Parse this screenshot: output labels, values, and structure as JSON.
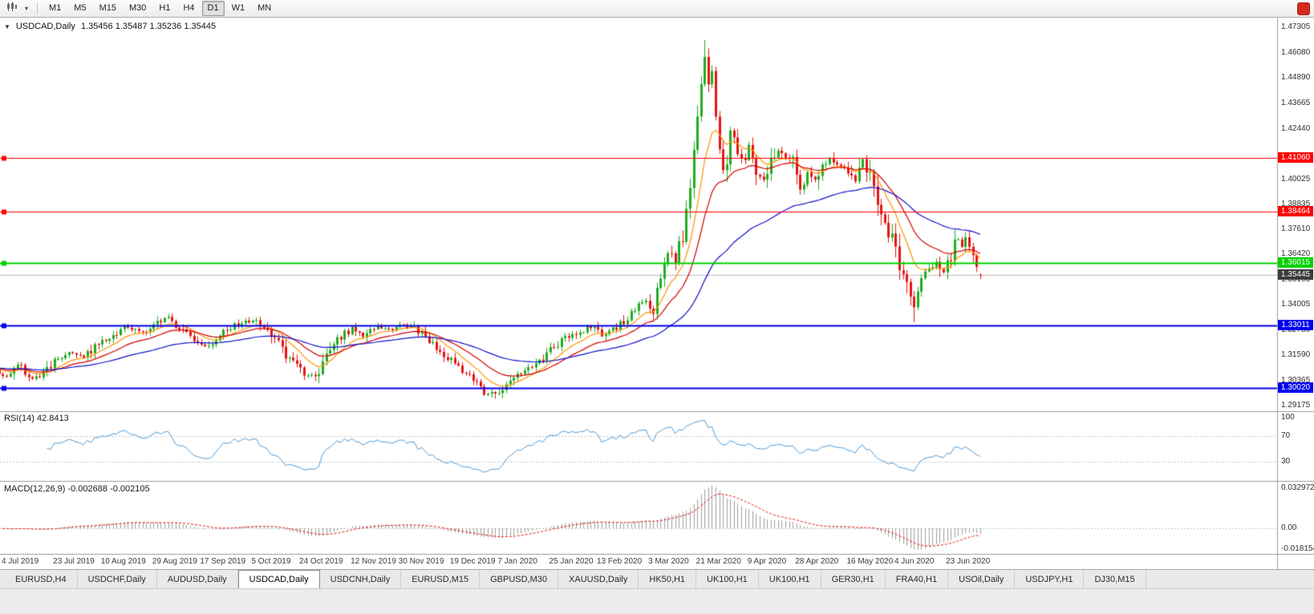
{
  "toolbar": {
    "dropdown_caret": "▾",
    "timeframes": [
      "M1",
      "M5",
      "M15",
      "M30",
      "H1",
      "H4",
      "D1",
      "W1",
      "MN"
    ],
    "active_timeframe": "D1",
    "logo_glyph": ""
  },
  "chart": {
    "collapse_marker": "▼",
    "symbol_label": "USDCAD,Daily",
    "ohlc_text": "1.35456 1.35487 1.35236 1.35445",
    "price_ticks": [
      "1.47305",
      "1.46080",
      "1.44890",
      "1.43665",
      "1.42440",
      "1.40025",
      "1.38835",
      "1.37610",
      "1.36420",
      "1.35195",
      "1.34005",
      "1.32780",
      "1.31590",
      "1.30365",
      "1.29175"
    ]
  },
  "rsi": {
    "label": "RSI(14) 42.8413",
    "axis_ticks": [
      {
        "text": "100",
        "value": 100
      },
      {
        "text": "70",
        "value": 70
      },
      {
        "text": "30",
        "value": 30
      }
    ]
  },
  "macd": {
    "label": "MACD(12,26,9) -0.002688 -0.002105",
    "axis_ticks": [
      {
        "text": "0.032972",
        "value": 0.032972
      },
      {
        "text": "0.00",
        "value": 0
      },
      {
        "text": "-0.018154",
        "value": -0.018154
      }
    ]
  },
  "tabs": {
    "items": [
      "EURUSD,H4",
      "USDCHF,Daily",
      "AUDUSD,Daily",
      "USDCAD,Daily",
      "USDCNH,Daily",
      "EURUSD,M15",
      "GBPUSD,M30",
      "XAUUSD,Daily",
      "HK50,H1",
      "UK100,H1",
      "UK100,H1",
      "GER30,H1",
      "FRA40,H1",
      "USOil,Daily",
      "USDJPY,H1",
      "DJ30,M15"
    ],
    "active_index": 3
  },
  "colors": {
    "up": "#1fae1f",
    "down": "#e51515",
    "ma_fast": "#ff9500",
    "ma_mid": "#d40000",
    "ma_slow": "#1212cc",
    "rsi": "#4f9bd6",
    "macd_bar": "#a0a0a0",
    "macd_signal": "#e51515",
    "level_red": "#ff0000",
    "level_green": "#00d200",
    "level_blue": "#0000ee",
    "current_badge": "#3c3c3c",
    "guide": "#c6c6c6",
    "current_line": "#bcbcbc"
  },
  "chart_data": {
    "type": "candlestick",
    "symbol": "USDCAD",
    "timeframe": "Daily",
    "current_ohlc": {
      "open": 1.35456,
      "high": 1.35487,
      "low": 1.35236,
      "close": 1.35445
    },
    "y_axis": {
      "min": 1.29175,
      "max": 1.47305
    },
    "candle_count": 269,
    "price_path_keyframes": [
      [
        0,
        1.3095
      ],
      [
        3,
        1.306
      ],
      [
        6,
        1.3115
      ],
      [
        10,
        1.3045
      ],
      [
        13,
        1.3075
      ],
      [
        16,
        1.3135
      ],
      [
        20,
        1.3165
      ],
      [
        24,
        1.3145
      ],
      [
        28,
        1.322
      ],
      [
        32,
        1.3255
      ],
      [
        36,
        1.33
      ],
      [
        40,
        1.327
      ],
      [
        43,
        1.3305
      ],
      [
        46,
        1.334
      ],
      [
        50,
        1.329
      ],
      [
        54,
        1.323
      ],
      [
        57,
        1.3195
      ],
      [
        60,
        1.324
      ],
      [
        63,
        1.328
      ],
      [
        66,
        1.331
      ],
      [
        70,
        1.3325
      ],
      [
        73,
        1.329
      ],
      [
        77,
        1.321
      ],
      [
        80,
        1.314
      ],
      [
        84,
        1.307
      ],
      [
        87,
        1.305
      ],
      [
        90,
        1.315
      ],
      [
        93,
        1.323
      ],
      [
        97,
        1.329
      ],
      [
        100,
        1.325
      ],
      [
        104,
        1.33
      ],
      [
        108,
        1.328
      ],
      [
        111,
        1.331
      ],
      [
        114,
        1.329
      ],
      [
        118,
        1.323
      ],
      [
        121,
        1.318
      ],
      [
        124,
        1.313
      ],
      [
        127,
        1.309
      ],
      [
        130,
        1.305
      ],
      [
        133,
        1.2985
      ],
      [
        136,
        1.2968
      ],
      [
        138,
        1.2995
      ],
      [
        141,
        1.305
      ],
      [
        144,
        1.3075
      ],
      [
        147,
        1.311
      ],
      [
        151,
        1.318
      ],
      [
        154,
        1.323
      ],
      [
        158,
        1.3265
      ],
      [
        162,
        1.3295
      ],
      [
        165,
        1.3255
      ],
      [
        168,
        1.3285
      ],
      [
        171,
        1.332
      ],
      [
        174,
        1.339
      ],
      [
        177,
        1.342
      ],
      [
        179,
        1.338
      ],
      [
        181,
        1.356
      ],
      [
        183,
        1.365
      ],
      [
        185,
        1.36
      ],
      [
        187,
        1.374
      ],
      [
        189,
        1.398
      ],
      [
        191,
        1.433
      ],
      [
        193,
        1.458
      ],
      [
        194,
        1.448
      ],
      [
        195,
        1.452
      ],
      [
        196,
        1.433
      ],
      [
        197,
        1.418
      ],
      [
        198,
        1.407
      ],
      [
        199,
        1.41
      ],
      [
        200,
        1.421
      ],
      [
        202,
        1.414
      ],
      [
        204,
        1.408
      ],
      [
        205,
        1.417
      ],
      [
        207,
        1.402
      ],
      [
        209,
        1.3985
      ],
      [
        211,
        1.408
      ],
      [
        213,
        1.415
      ],
      [
        215,
        1.411
      ],
      [
        217,
        1.4085
      ],
      [
        219,
        1.396
      ],
      [
        221,
        1.403
      ],
      [
        223,
        1.3985
      ],
      [
        225,
        1.4075
      ],
      [
        227,
        1.4105
      ],
      [
        229,
        1.406
      ],
      [
        232,
        1.404
      ],
      [
        234,
        1.3985
      ],
      [
        236,
        1.41
      ],
      [
        238,
        1.401
      ],
      [
        240,
        1.39
      ],
      [
        242,
        1.379
      ],
      [
        244,
        1.3715
      ],
      [
        246,
        1.358
      ],
      [
        248,
        1.3475
      ],
      [
        250,
        1.339
      ],
      [
        251,
        1.348
      ],
      [
        252,
        1.3555
      ],
      [
        254,
        1.3575
      ],
      [
        256,
        1.3605
      ],
      [
        258,
        1.355
      ],
      [
        260,
        1.363
      ],
      [
        261,
        1.3695
      ],
      [
        262,
        1.372
      ],
      [
        263,
        1.369
      ],
      [
        264,
        1.3705
      ],
      [
        265,
        1.3655
      ],
      [
        266,
        1.3605
      ],
      [
        267,
        1.357
      ],
      [
        268,
        1.3545
      ]
    ],
    "spike_overrides": {
      "highs": [
        [
          193,
          1.4669
        ]
      ],
      "lows": [
        [
          136,
          1.2951
        ],
        [
          250,
          1.3317
        ]
      ]
    },
    "horizontal_levels": [
      {
        "label": "1.41060",
        "value": 1.4106,
        "color_key": "level_red"
      },
      {
        "label": "1.38464",
        "value": 1.38464,
        "color_key": "level_red"
      },
      {
        "label": "1.36015",
        "value": 1.36015,
        "color_key": "level_green"
      },
      {
        "label": "1.33011",
        "value": 1.33011,
        "color_key": "level_blue"
      },
      {
        "label": "1.30020",
        "value": 1.3002,
        "color_key": "level_blue"
      }
    ],
    "current_price": {
      "label": "1.35445",
      "value": 1.35445
    },
    "moving_averages": [
      {
        "type": "ema",
        "period": 10,
        "color_key": "ma_fast"
      },
      {
        "type": "ema",
        "period": 21,
        "color_key": "ma_mid"
      },
      {
        "type": "ema",
        "period": 55,
        "color_key": "ma_slow"
      }
    ],
    "x_axis_labels": [
      {
        "text": "4 Jul 2019",
        "i": 3
      },
      {
        "text": "23 Jul 2019",
        "i": 17
      },
      {
        "text": "10 Aug 2019",
        "i": 30
      },
      {
        "text": "29 Aug 2019",
        "i": 44
      },
      {
        "text": "17 Sep 2019",
        "i": 57
      },
      {
        "text": "5 Oct 2019",
        "i": 71
      },
      {
        "text": "24 Oct 2019",
        "i": 84
      },
      {
        "text": "12 Nov 2019",
        "i": 98
      },
      {
        "text": "30 Nov 2019",
        "i": 111
      },
      {
        "text": "19 Dec 2019",
        "i": 125
      },
      {
        "text": "7 Jan 2020",
        "i": 138
      },
      {
        "text": "25 Jan 2020",
        "i": 152
      },
      {
        "text": "13 Feb 2020",
        "i": 165
      },
      {
        "text": "3 Mar 2020",
        "i": 179
      },
      {
        "text": "21 Mar 2020",
        "i": 192
      },
      {
        "text": "9 Apr 2020",
        "i": 206
      },
      {
        "text": "28 Apr 2020",
        "i": 219
      },
      {
        "text": "16 May 2020",
        "i": 233
      },
      {
        "text": "4 Jun 2020",
        "i": 246
      },
      {
        "text": "23 Jun 2020",
        "i": 260
      }
    ],
    "indicators": {
      "rsi": {
        "period": 14,
        "current": 42.8413,
        "guide_levels": [
          70,
          30
        ]
      },
      "macd": {
        "fast": 12,
        "slow": 26,
        "signal_period": 9,
        "current_macd": -0.002688,
        "current_signal": -0.002105,
        "axis_max": 0.032972,
        "axis_min": -0.018154
      }
    }
  }
}
